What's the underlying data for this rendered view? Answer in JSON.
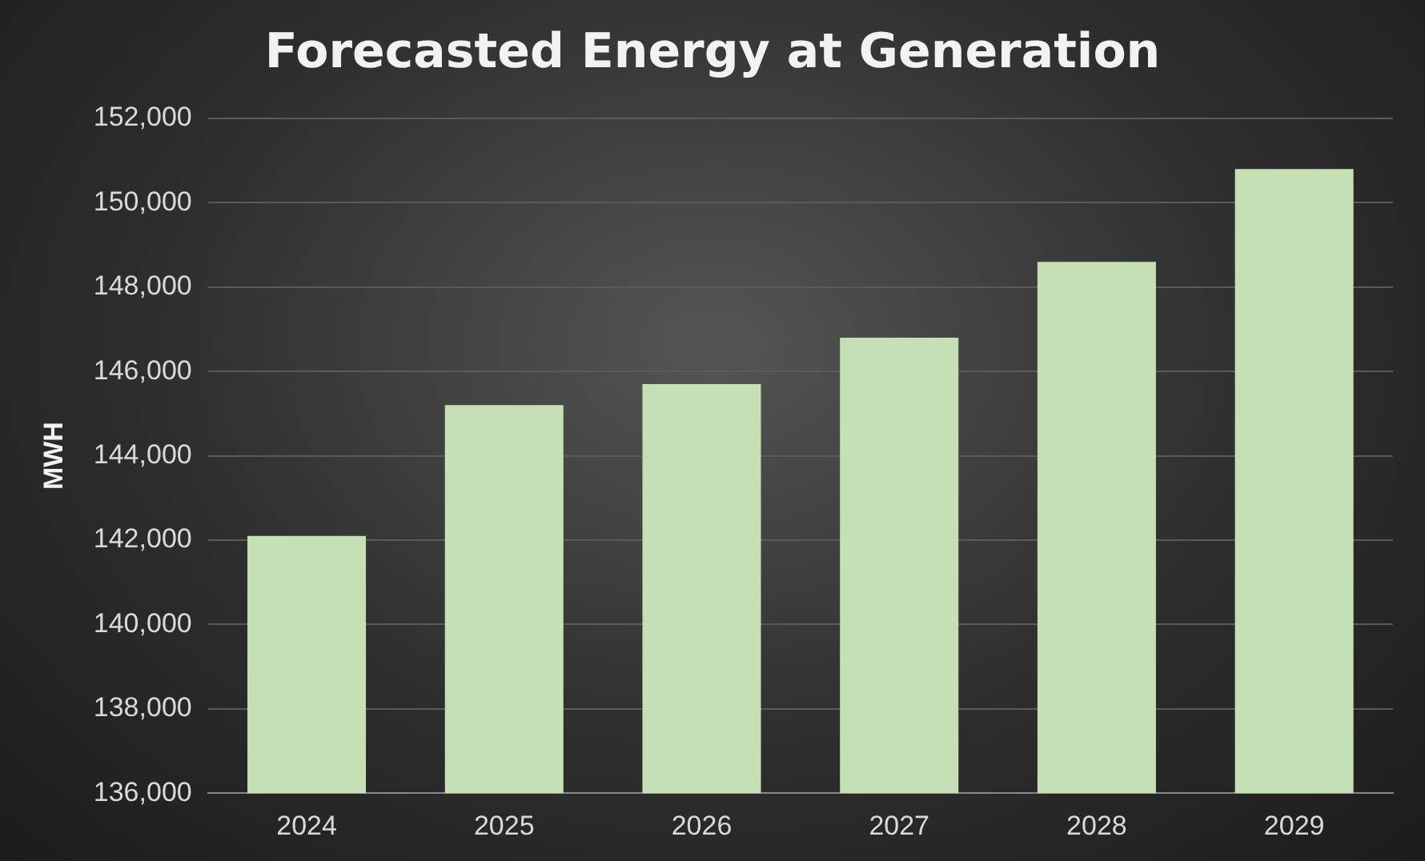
{
  "chart_data": {
    "type": "bar",
    "title": "Forecasted Energy at Generation",
    "ylabel": "MWH",
    "categories": [
      "2024",
      "2025",
      "2026",
      "2027",
      "2028",
      "2029"
    ],
    "values": [
      142100,
      145200,
      145700,
      146800,
      148600,
      150800
    ],
    "color": "#c5e0b4",
    "ylim": [
      136000,
      152000
    ],
    "yticks": [
      {
        "value": 136000,
        "label": "136,000"
      },
      {
        "value": 138000,
        "label": "138,000"
      },
      {
        "value": 140000,
        "label": "140,000"
      },
      {
        "value": 142000,
        "label": "142,000"
      },
      {
        "value": 144000,
        "label": "144,000"
      },
      {
        "value": 146000,
        "label": "146,000"
      },
      {
        "value": 148000,
        "label": "148,000"
      },
      {
        "value": 150000,
        "label": "150,000"
      },
      {
        "value": 152000,
        "label": "152,000"
      }
    ],
    "grid": "y"
  }
}
